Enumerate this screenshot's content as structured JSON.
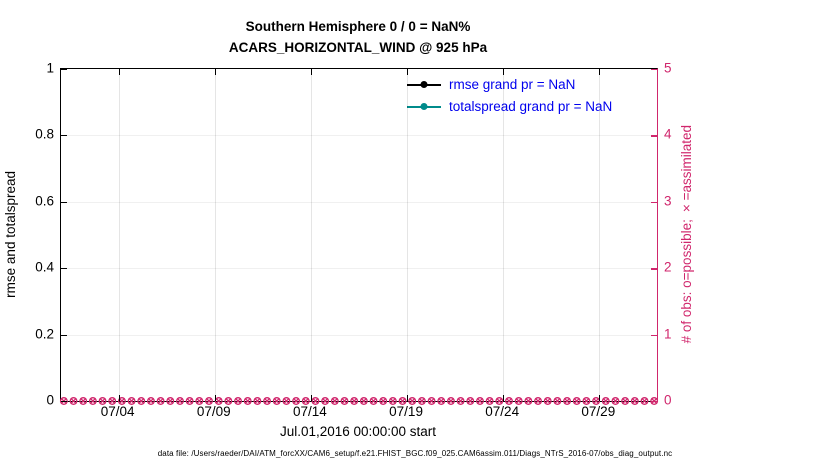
{
  "title": {
    "line1": "Southern Hemisphere 0 / 0 = NaN%",
    "line2": "ACARS_HORIZONTAL_WIND @ 925 hPa"
  },
  "axes": {
    "left": {
      "label": "rmse and totalspread",
      "ticks": [
        0,
        0.2,
        0.4,
        0.6,
        0.8,
        1
      ],
      "range": [
        0,
        1
      ],
      "color": "#000000"
    },
    "right": {
      "label": "# of obs: o=possible; ×=assimilated",
      "ticks": [
        0,
        1,
        2,
        3,
        4,
        5
      ],
      "range": [
        0,
        5
      ],
      "color": "#d0266c"
    },
    "x": {
      "label": "Jul.01,2016 00:00:00 start",
      "ticks": [
        {
          "label": "07/04",
          "day": 4
        },
        {
          "label": "07/09",
          "day": 9
        },
        {
          "label": "07/14",
          "day": 14
        },
        {
          "label": "07/19",
          "day": 19
        },
        {
          "label": "07/24",
          "day": 24
        },
        {
          "label": "07/29",
          "day": 29
        }
      ],
      "domain_days": [
        1,
        32
      ]
    }
  },
  "legend": {
    "text_color": "#0000ee",
    "items": [
      {
        "label": "rmse grand pr = NaN",
        "color": "#000000"
      },
      {
        "label": "totalspread grand pr = NaN",
        "color": "#008b8b"
      }
    ]
  },
  "obs_row": {
    "bins": 62,
    "value": 0,
    "color": "#d0266c",
    "marker_possible": "o",
    "marker_assimilated": "×"
  },
  "footer": "data file: /Users/raeder/DAI/ATM_forcXX/CAM6_setup/f.e21.FHIST_BGC.f09_025.CAM6assim.011/Diags_NTrS_2016-07/obs_diag_output.nc",
  "chart_data": {
    "type": "line",
    "title": "Southern Hemisphere 0 / 0 = NaN%",
    "subtitle": "ACARS_HORIZONTAL_WIND @ 925 hPa",
    "xlabel": "Jul.01,2016 00:00:00 start",
    "ylabel": "rmse and totalspread",
    "ylabel_right": "# of obs: o=possible; ×=assimilated",
    "x_tick_labels": [
      "07/04",
      "07/09",
      "07/14",
      "07/19",
      "07/24",
      "07/29"
    ],
    "ylim_left": [
      0,
      1
    ],
    "ylim_right": [
      0,
      5
    ],
    "grid": true,
    "legend_position": "upper center, no box",
    "series": [
      {
        "name": "rmse grand pr = NaN",
        "color": "#000000",
        "axis": "left",
        "values": [],
        "note": "no data plotted (all NaN)"
      },
      {
        "name": "totalspread grand pr = NaN",
        "color": "#008b8b",
        "axis": "left",
        "values": [],
        "note": "no data plotted (all NaN)"
      },
      {
        "name": "# obs possible",
        "color": "#d0266c",
        "axis": "right",
        "marker": "o",
        "constant_value": 0,
        "n_points": 62
      },
      {
        "name": "# obs assimilated",
        "color": "#d0266c",
        "axis": "right",
        "marker": "x",
        "constant_value": 0,
        "n_points": 62
      }
    ]
  }
}
